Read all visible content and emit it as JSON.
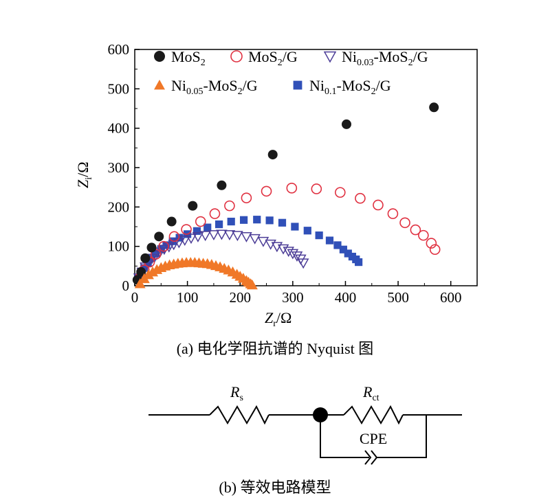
{
  "chart_data": {
    "type": "scatter",
    "xlabel": "Z_r/Ω",
    "ylabel": "Z_i/Ω",
    "xlim": [
      0,
      650
    ],
    "ylim": [
      0,
      600
    ],
    "x_ticks": [
      0,
      100,
      200,
      300,
      400,
      500,
      600
    ],
    "y_ticks": [
      0,
      100,
      200,
      300,
      400,
      500,
      600
    ],
    "grid": false,
    "legend_position": "top-left",
    "series": [
      {
        "name": "MoS2",
        "name_parts": {
          "base": "MoS",
          "sub": "2",
          "rest": ""
        },
        "marker": "filled-circle",
        "color": "#1a1a1a",
        "x": [
          5,
          12,
          20,
          32,
          46,
          70,
          110,
          165,
          262,
          402,
          568
        ],
        "y": [
          15,
          35,
          70,
          97,
          125,
          163,
          203,
          255,
          333,
          410,
          453
        ]
      },
      {
        "name": "MoS2/G",
        "name_parts": {
          "base": "MoS",
          "sub": "2",
          "rest": "/G"
        },
        "marker": "open-circle",
        "color": "#e03040",
        "x": [
          10,
          18,
          28,
          40,
          55,
          75,
          98,
          125,
          152,
          180,
          212,
          250,
          298,
          345,
          390,
          428,
          462,
          490,
          513,
          533,
          548,
          563,
          570
        ],
        "y": [
          20,
          40,
          60,
          80,
          100,
          125,
          143,
          163,
          183,
          203,
          223,
          240,
          248,
          246,
          237,
          222,
          205,
          183,
          160,
          142,
          128,
          108,
          92
        ]
      },
      {
        "name": "Ni0.03-MoS2/G",
        "name_parts": {
          "base": "Ni",
          "sub": "0.03",
          "rest": "-MoS",
          "sub2": "2",
          "rest2": "/G"
        },
        "marker": "open-triangle-down",
        "color": "#4b3c96",
        "x": [
          8,
          14,
          20,
          26,
          33,
          40,
          48,
          56,
          65,
          74,
          84,
          95,
          107,
          120,
          134,
          150,
          165,
          180,
          195,
          212,
          228,
          244,
          258,
          270,
          282,
          292,
          300,
          308,
          315,
          320
        ],
        "y": [
          20,
          35,
          48,
          60,
          70,
          78,
          86,
          93,
          99,
          105,
          110,
          116,
          121,
          125,
          128,
          130,
          131,
          130,
          128,
          125,
          120,
          113,
          106,
          100,
          94,
          88,
          82,
          76,
          68,
          58
        ]
      },
      {
        "name": "Ni0.05-MoS2/G",
        "name_parts": {
          "base": "Ni",
          "sub": "0.05",
          "rest": "-MoS",
          "sub2": "2",
          "rest2": "/G"
        },
        "marker": "filled-triangle-up",
        "color": "#f07828",
        "x": [
          10,
          18,
          26,
          34,
          42,
          50,
          58,
          66,
          74,
          82,
          90,
          98,
          106,
          114,
          122,
          130,
          138,
          146,
          154,
          162,
          170,
          178,
          186,
          194,
          200,
          206,
          212,
          216,
          220,
          223
        ],
        "y": [
          5,
          18,
          28,
          35,
          41,
          46,
          50,
          53,
          55,
          57,
          58,
          59,
          59,
          59,
          58,
          57,
          56,
          54,
          51,
          48,
          44,
          40,
          35,
          29,
          24,
          19,
          13,
          9,
          5,
          2
        ]
      },
      {
        "name": "Ni0.1-MoS2/G",
        "name_parts": {
          "base": "Ni",
          "sub": "0.1",
          "rest": "-MoS",
          "sub2": "2",
          "rest2": "/G"
        },
        "marker": "filled-square",
        "color": "#3050b8",
        "x": [
          6,
          12,
          18,
          25,
          32,
          40,
          50,
          60,
          72,
          85,
          100,
          118,
          138,
          160,
          183,
          207,
          232,
          256,
          280,
          304,
          328,
          350,
          370,
          385,
          396,
          405,
          413,
          420,
          425
        ],
        "y": [
          18,
          32,
          45,
          58,
          70,
          82,
          93,
          103,
          113,
          122,
          131,
          139,
          148,
          156,
          163,
          167,
          168,
          166,
          160,
          150,
          140,
          128,
          115,
          103,
          92,
          82,
          74,
          67,
          60
        ]
      }
    ]
  },
  "captions": {
    "a": "(a) 电化学阻抗谱的 Nyquist 图",
    "b": "(b) 等效电路模型"
  },
  "circuit": {
    "rs_letter": "R",
    "rs_sub": "s",
    "rct_letter": "R",
    "rct_sub": "ct",
    "cpe_label": "CPE"
  }
}
